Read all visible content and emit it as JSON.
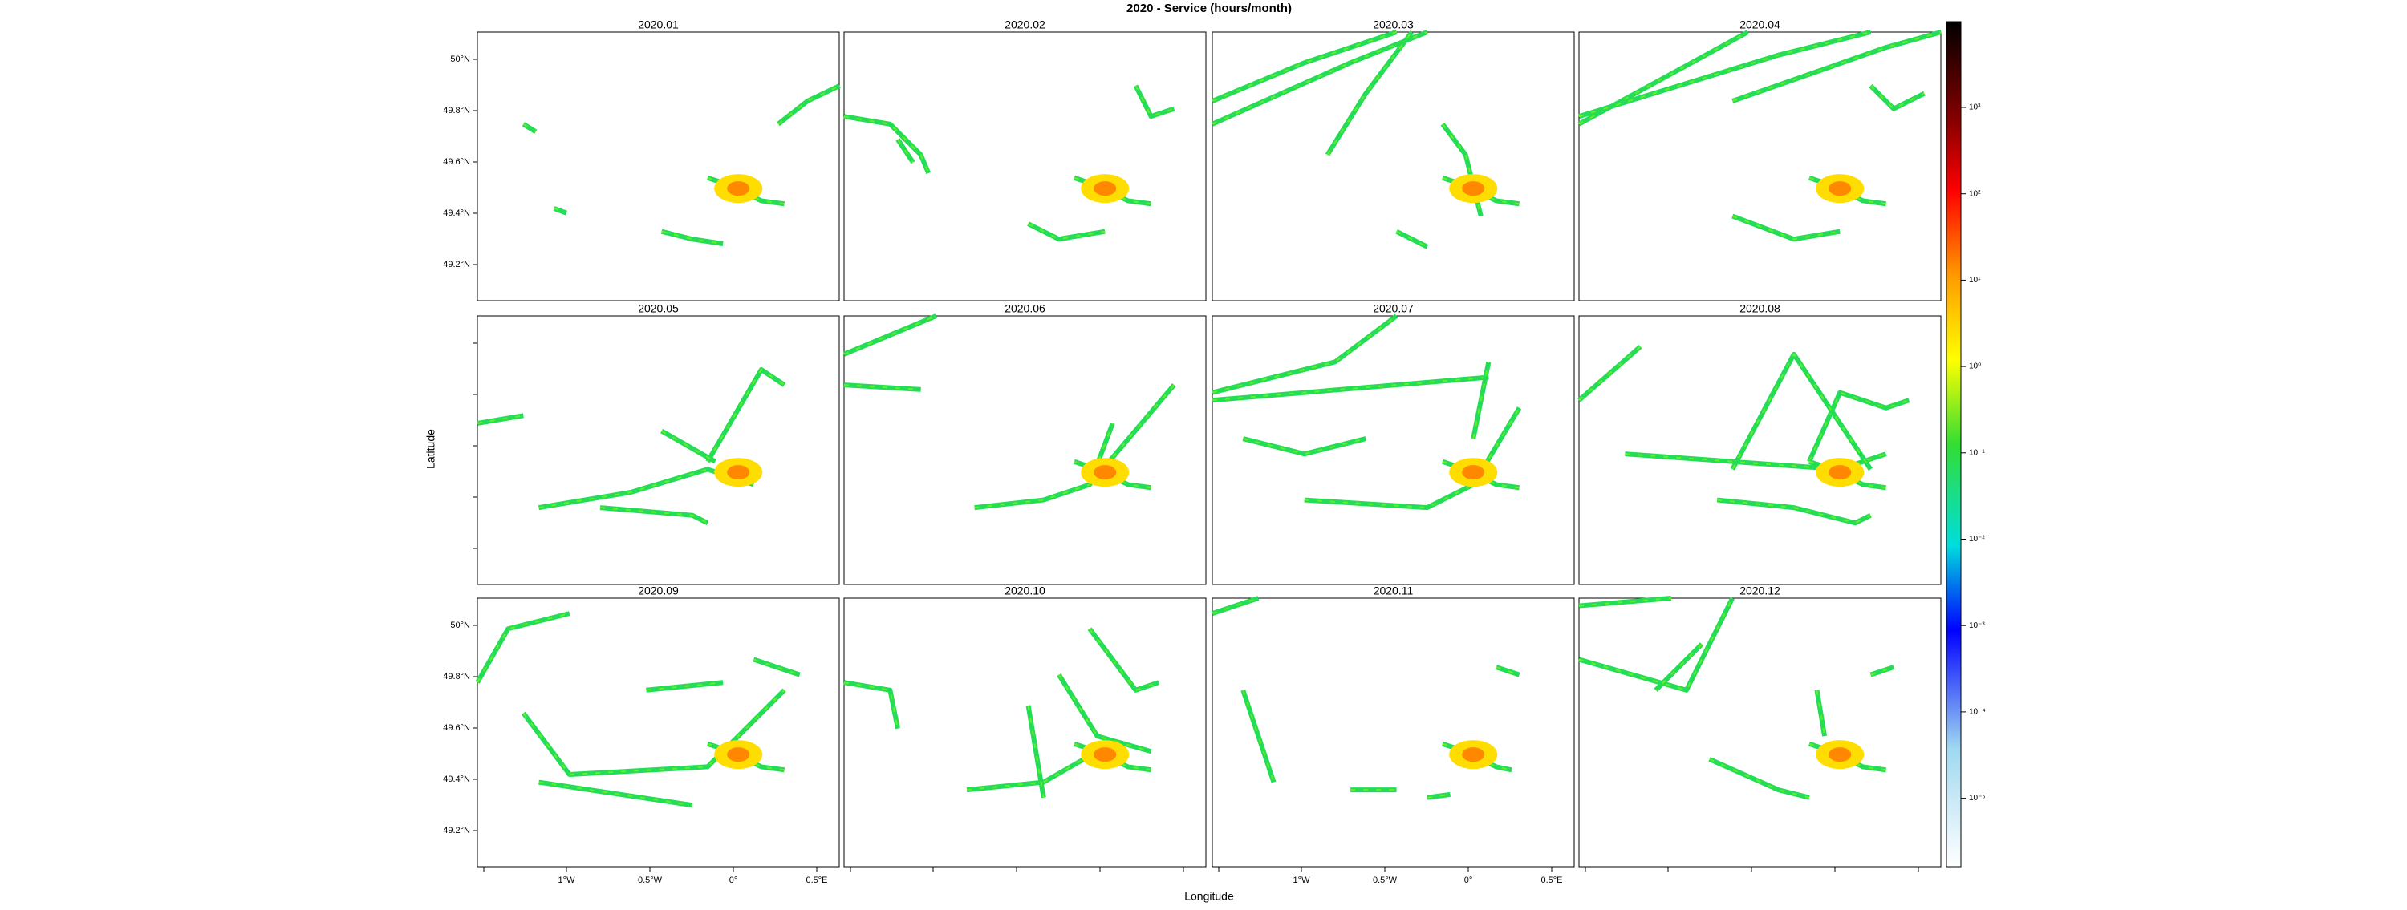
{
  "title": "2020 - Service (hours/month)",
  "x_label": "Longitude",
  "y_label": "Latitude",
  "panels": [
    "2020.01",
    "2020.02",
    "2020.03",
    "2020.04",
    "2020.05",
    "2020.06",
    "2020.07",
    "2020.08",
    "2020.09",
    "2020.10",
    "2020.11",
    "2020.12"
  ],
  "y_ticks": [
    "50°N",
    "49.8°N",
    "49.6°N",
    "49.4°N",
    "49.2°N"
  ],
  "x_ticks": [
    "1°W",
    "0.5°W",
    "0°",
    "0.5°E"
  ],
  "colorbar_ticks": [
    "10³",
    "10²",
    "10¹",
    "10⁰",
    "10⁻¹",
    "10⁻²",
    "10⁻³",
    "10⁻⁴",
    "10⁻⁵"
  ]
}
